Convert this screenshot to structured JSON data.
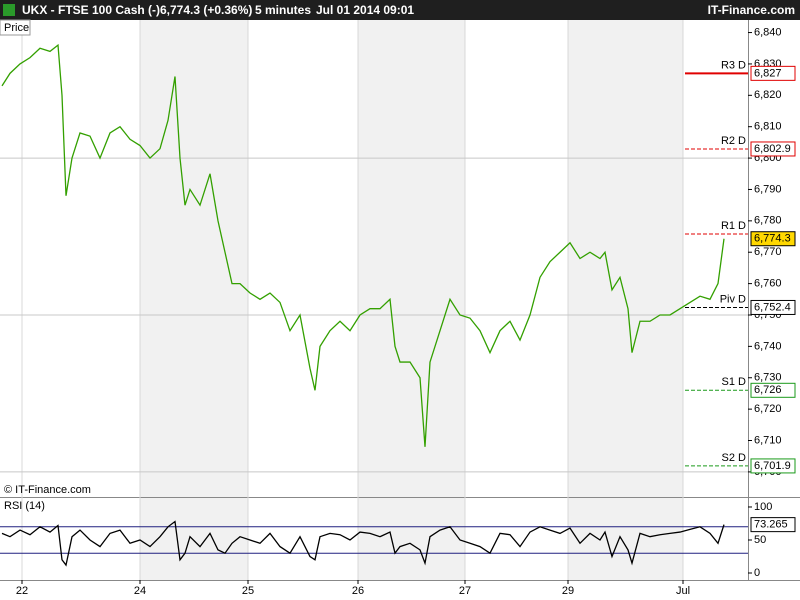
{
  "header": {
    "title": "UKX - FTSE 100 Cash (-)",
    "price": "6,774.3 (+0.36%)",
    "interval": "5 minutes",
    "date": "Jul 01 2014 09:01",
    "brand": "IT-Finance.com"
  },
  "chart_data": [
    {
      "type": "line",
      "title": "Price",
      "annotation": "© IT-Finance.com",
      "color": "#33a000",
      "x": [
        2,
        10,
        20,
        30,
        40,
        50,
        58,
        62,
        66,
        72,
        80,
        90,
        100,
        110,
        120,
        130,
        140,
        150,
        160,
        168,
        175,
        180,
        185,
        190,
        200,
        210,
        218,
        225,
        232,
        240,
        250,
        260,
        270,
        280,
        290,
        300,
        310,
        315,
        320,
        330,
        340,
        350,
        360,
        370,
        380,
        390,
        395,
        400,
        410,
        420,
        425,
        430,
        440,
        450,
        460,
        470,
        480,
        490,
        500,
        510,
        520,
        530,
        540,
        550,
        560,
        570,
        580,
        590,
        600,
        605,
        612,
        620,
        628,
        632,
        640,
        650,
        660,
        670,
        680,
        690,
        700,
        710,
        718,
        724
      ],
      "values": [
        6823,
        6827,
        6830,
        6832,
        6835,
        6834,
        6836,
        6820,
        6788,
        6800,
        6808,
        6807,
        6800,
        6808,
        6810,
        6806,
        6804,
        6800,
        6803,
        6812,
        6826,
        6800,
        6785,
        6790,
        6785,
        6795,
        6780,
        6770,
        6760,
        6760,
        6757,
        6755,
        6757,
        6754,
        6745,
        6750,
        6733,
        6726,
        6740,
        6745,
        6748,
        6745,
        6750,
        6752,
        6752,
        6755,
        6740,
        6735,
        6735,
        6730,
        6708,
        6735,
        6745,
        6755,
        6750,
        6749,
        6745,
        6738,
        6745,
        6748,
        6742,
        6750,
        6762,
        6767,
        6770,
        6773,
        6768,
        6770,
        6768,
        6770,
        6758,
        6762,
        6752,
        6738,
        6748,
        6748,
        6750,
        6750,
        6752,
        6754,
        6756,
        6755,
        6760,
        6774.3
      ],
      "xlim": [
        0,
        748
      ],
      "xticks": [
        {
          "value": 22,
          "label": "22"
        },
        {
          "value": 140,
          "label": "24"
        },
        {
          "value": 248,
          "label": "25"
        },
        {
          "value": 358,
          "label": "26"
        },
        {
          "value": 465,
          "label": "27"
        },
        {
          "value": 568,
          "label": "29"
        },
        {
          "value": 683,
          "label": "Jul"
        }
      ],
      "ylim": [
        6692,
        6844
      ],
      "yticks": [
        {
          "value": 6700,
          "label": "6,700"
        },
        {
          "value": 6710,
          "label": "6,710"
        },
        {
          "value": 6720,
          "label": "6,720"
        },
        {
          "value": 6730,
          "label": "6,730"
        },
        {
          "value": 6740,
          "label": "6,740"
        },
        {
          "value": 6750,
          "label": "6,750"
        },
        {
          "value": 6760,
          "label": "6,760"
        },
        {
          "value": 6770,
          "label": "6,770"
        },
        {
          "value": 6780,
          "label": "6,780"
        },
        {
          "value": 6790,
          "label": "6,790"
        },
        {
          "value": 6800,
          "label": "6,800"
        },
        {
          "value": 6810,
          "label": "6,810"
        },
        {
          "value": 6820,
          "label": "6,820"
        },
        {
          "value": 6830,
          "label": "6,830"
        },
        {
          "value": 6840,
          "label": "6,840"
        }
      ],
      "last_price": {
        "value": 6774.3,
        "label": "6,774.3"
      },
      "levels": [
        {
          "name": "R3 D",
          "value": 6827,
          "label": "6,827",
          "color": "#e00000",
          "dashed": false
        },
        {
          "name": "R2 D",
          "value": 6802.9,
          "label": "6,802.9",
          "color": "#e00000",
          "dashed": true
        },
        {
          "name": "R1 D",
          "value": 6775.8,
          "color": "#e00000",
          "dashed": true
        },
        {
          "name": "Piv D",
          "value": 6752.4,
          "label": "6,752.4",
          "color": "#000000",
          "dashed": true
        },
        {
          "name": "S1 D",
          "value": 6726,
          "label": "6,726",
          "color": "#1a9a1a",
          "dashed": true
        },
        {
          "name": "S2 D",
          "value": 6701.9,
          "label": "6,701.9",
          "color": "#1a9a1a",
          "dashed": true
        }
      ]
    },
    {
      "type": "line",
      "title": "RSI (14)",
      "color": "#000000",
      "x": [
        2,
        10,
        20,
        30,
        40,
        50,
        58,
        62,
        66,
        72,
        80,
        90,
        100,
        110,
        120,
        130,
        140,
        150,
        160,
        168,
        175,
        180,
        185,
        190,
        200,
        210,
        218,
        225,
        232,
        240,
        250,
        260,
        270,
        280,
        290,
        300,
        310,
        315,
        320,
        330,
        340,
        350,
        360,
        370,
        380,
        390,
        395,
        400,
        410,
        420,
        425,
        430,
        440,
        450,
        460,
        470,
        480,
        490,
        500,
        510,
        520,
        530,
        540,
        550,
        560,
        570,
        580,
        590,
        600,
        605,
        612,
        620,
        628,
        632,
        640,
        650,
        660,
        670,
        680,
        690,
        700,
        710,
        718,
        724
      ],
      "values": [
        60,
        55,
        65,
        58,
        70,
        62,
        72,
        20,
        12,
        55,
        65,
        50,
        40,
        60,
        65,
        45,
        50,
        40,
        55,
        70,
        78,
        20,
        30,
        55,
        40,
        60,
        35,
        30,
        45,
        55,
        50,
        45,
        60,
        40,
        30,
        55,
        25,
        20,
        55,
        60,
        58,
        50,
        62,
        60,
        55,
        62,
        30,
        40,
        45,
        35,
        15,
        55,
        65,
        70,
        50,
        45,
        40,
        30,
        60,
        58,
        40,
        62,
        70,
        65,
        60,
        68,
        45,
        60,
        50,
        62,
        25,
        55,
        35,
        15,
        60,
        55,
        58,
        60,
        62,
        66,
        70,
        60,
        45,
        73.265
      ],
      "xlim": [
        0,
        748
      ],
      "ylim": [
        -10.6,
        113.6
      ],
      "yticks": [
        0,
        50,
        100
      ],
      "bands": [
        30,
        70
      ],
      "last_value": 73.265
    }
  ]
}
